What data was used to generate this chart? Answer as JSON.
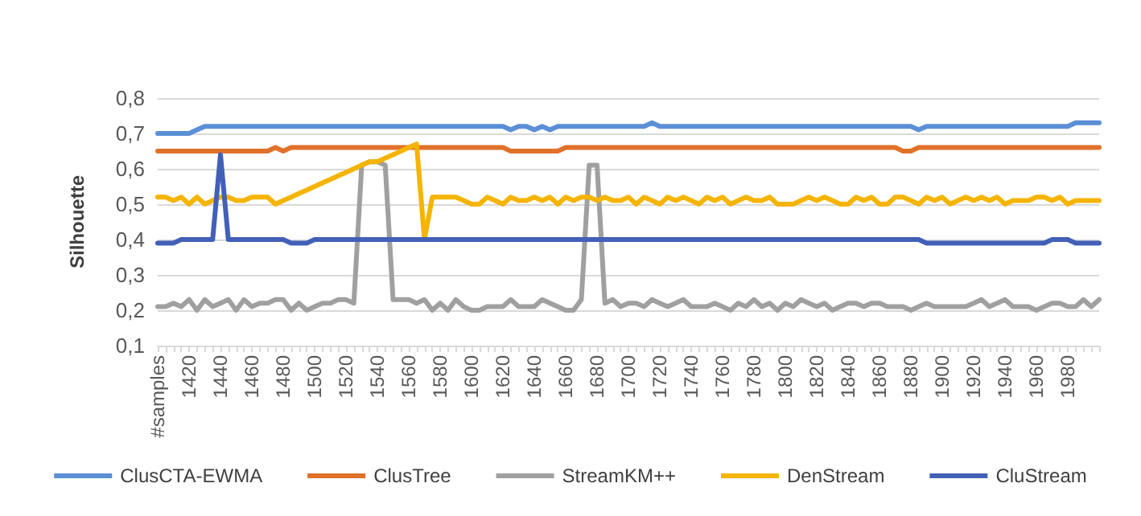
{
  "chart_data": {
    "type": "line",
    "ylabel": "Silhouette",
    "categories": [
      "#samples",
      null,
      null,
      null,
      "1420",
      null,
      null,
      null,
      "1440",
      null,
      null,
      null,
      "1460",
      null,
      null,
      null,
      "1480",
      null,
      null,
      null,
      "1500",
      null,
      null,
      null,
      "1520",
      null,
      null,
      null,
      "1540",
      null,
      null,
      null,
      "1560",
      null,
      null,
      null,
      "1580",
      null,
      null,
      null,
      "1600",
      null,
      null,
      null,
      "1620",
      null,
      null,
      null,
      "1640",
      null,
      null,
      null,
      "1660",
      null,
      null,
      null,
      "1680",
      null,
      null,
      null,
      "1700",
      null,
      null,
      null,
      "1720",
      null,
      null,
      null,
      "1740",
      null,
      null,
      null,
      "1760",
      null,
      null,
      null,
      "1780",
      null,
      null,
      null,
      "1800",
      null,
      null,
      null,
      "1820",
      null,
      null,
      null,
      "1840",
      null,
      null,
      null,
      "1860",
      null,
      null,
      null,
      "1880",
      null,
      null,
      null,
      "1900",
      null,
      null,
      null,
      "1920",
      null,
      null,
      null,
      "1940",
      null,
      null,
      null,
      "1960",
      null,
      null,
      null,
      "1980",
      null,
      null,
      null,
      null
    ],
    "series": [
      {
        "name": "ClusCTA-EWMA",
        "color": "#5b8fd6",
        "values": [
          0.7,
          0.7,
          0.7,
          0.7,
          0.7,
          0.71,
          0.72,
          0.72,
          0.72,
          0.72,
          0.72,
          0.72,
          0.72,
          0.72,
          0.72,
          0.72,
          0.72,
          0.72,
          0.72,
          0.72,
          0.72,
          0.72,
          0.72,
          0.72,
          0.72,
          0.72,
          0.72,
          0.72,
          0.72,
          0.72,
          0.72,
          0.72,
          0.72,
          0.72,
          0.72,
          0.72,
          0.72,
          0.72,
          0.72,
          0.72,
          0.72,
          0.72,
          0.72,
          0.72,
          0.72,
          0.71,
          0.72,
          0.72,
          0.71,
          0.72,
          0.71,
          0.72,
          0.72,
          0.72,
          0.72,
          0.72,
          0.72,
          0.72,
          0.72,
          0.72,
          0.72,
          0.72,
          0.72,
          0.73,
          0.72,
          0.72,
          0.72,
          0.72,
          0.72,
          0.72,
          0.72,
          0.72,
          0.72,
          0.72,
          0.72,
          0.72,
          0.72,
          0.72,
          0.72,
          0.72,
          0.72,
          0.72,
          0.72,
          0.72,
          0.72,
          0.72,
          0.72,
          0.72,
          0.72,
          0.72,
          0.72,
          0.72,
          0.72,
          0.72,
          0.72,
          0.72,
          0.72,
          0.71,
          0.72,
          0.72,
          0.72,
          0.72,
          0.72,
          0.72,
          0.72,
          0.72,
          0.72,
          0.72,
          0.72,
          0.72,
          0.72,
          0.72,
          0.72,
          0.72,
          0.72,
          0.72,
          0.72,
          0.73,
          0.73,
          0.73,
          0.73
        ]
      },
      {
        "name": "ClusTree",
        "color": "#e0712a",
        "values": [
          0.65,
          0.65,
          0.65,
          0.65,
          0.65,
          0.65,
          0.65,
          0.65,
          0.65,
          0.65,
          0.65,
          0.65,
          0.65,
          0.65,
          0.65,
          0.66,
          0.65,
          0.66,
          0.66,
          0.66,
          0.66,
          0.66,
          0.66,
          0.66,
          0.66,
          0.66,
          0.66,
          0.66,
          0.66,
          0.66,
          0.66,
          0.66,
          0.66,
          0.66,
          0.66,
          0.66,
          0.66,
          0.66,
          0.66,
          0.66,
          0.66,
          0.66,
          0.66,
          0.66,
          0.66,
          0.65,
          0.65,
          0.65,
          0.65,
          0.65,
          0.65,
          0.65,
          0.66,
          0.66,
          0.66,
          0.66,
          0.66,
          0.66,
          0.66,
          0.66,
          0.66,
          0.66,
          0.66,
          0.66,
          0.66,
          0.66,
          0.66,
          0.66,
          0.66,
          0.66,
          0.66,
          0.66,
          0.66,
          0.66,
          0.66,
          0.66,
          0.66,
          0.66,
          0.66,
          0.66,
          0.66,
          0.66,
          0.66,
          0.66,
          0.66,
          0.66,
          0.66,
          0.66,
          0.66,
          0.66,
          0.66,
          0.66,
          0.66,
          0.66,
          0.66,
          0.65,
          0.65,
          0.66,
          0.66,
          0.66,
          0.66,
          0.66,
          0.66,
          0.66,
          0.66,
          0.66,
          0.66,
          0.66,
          0.66,
          0.66,
          0.66,
          0.66,
          0.66,
          0.66,
          0.66,
          0.66,
          0.66,
          0.66,
          0.66,
          0.66,
          0.66
        ]
      },
      {
        "name": "StreamKM++",
        "color": "#a0a0a0",
        "values": [
          0.21,
          0.21,
          0.22,
          0.21,
          0.23,
          0.2,
          0.23,
          0.21,
          0.22,
          0.23,
          0.2,
          0.23,
          0.21,
          0.22,
          0.22,
          0.23,
          0.23,
          0.2,
          0.22,
          0.2,
          0.21,
          0.22,
          0.22,
          0.23,
          0.23,
          0.22,
          0.61,
          0.62,
          0.62,
          0.61,
          0.23,
          0.23,
          0.23,
          0.22,
          0.23,
          0.2,
          0.22,
          0.2,
          0.23,
          0.21,
          0.2,
          0.2,
          0.21,
          0.21,
          0.21,
          0.23,
          0.21,
          0.21,
          0.21,
          0.23,
          0.22,
          0.21,
          0.2,
          0.2,
          0.23,
          0.61,
          0.61,
          0.22,
          0.23,
          0.21,
          0.22,
          0.22,
          0.21,
          0.23,
          0.22,
          0.21,
          0.22,
          0.23,
          0.21,
          0.21,
          0.21,
          0.22,
          0.21,
          0.2,
          0.22,
          0.21,
          0.23,
          0.21,
          0.22,
          0.2,
          0.22,
          0.21,
          0.23,
          0.22,
          0.21,
          0.22,
          0.2,
          0.21,
          0.22,
          0.22,
          0.21,
          0.22,
          0.22,
          0.21,
          0.21,
          0.21,
          0.2,
          0.21,
          0.22,
          0.21,
          0.21,
          0.21,
          0.21,
          0.21,
          0.22,
          0.23,
          0.21,
          0.22,
          0.23,
          0.21,
          0.21,
          0.21,
          0.2,
          0.21,
          0.22,
          0.22,
          0.21,
          0.21,
          0.23,
          0.21,
          0.23
        ]
      },
      {
        "name": "DenStream",
        "color": "#f5b400",
        "values": [
          0.52,
          0.52,
          0.51,
          0.52,
          0.5,
          0.52,
          0.5,
          0.51,
          0.52,
          0.52,
          0.51,
          0.51,
          0.52,
          0.52,
          0.52,
          0.5,
          0.51,
          0.52,
          0.53,
          0.54,
          0.55,
          0.56,
          0.57,
          0.58,
          0.59,
          0.6,
          0.61,
          0.62,
          0.62,
          0.63,
          0.64,
          0.65,
          0.66,
          0.67,
          0.4,
          0.52,
          0.52,
          0.52,
          0.52,
          0.51,
          0.5,
          0.5,
          0.52,
          0.51,
          0.5,
          0.52,
          0.51,
          0.51,
          0.52,
          0.51,
          0.52,
          0.5,
          0.52,
          0.51,
          0.52,
          0.52,
          0.51,
          0.52,
          0.51,
          0.51,
          0.52,
          0.5,
          0.52,
          0.51,
          0.5,
          0.52,
          0.51,
          0.52,
          0.51,
          0.5,
          0.52,
          0.51,
          0.52,
          0.5,
          0.51,
          0.52,
          0.51,
          0.51,
          0.52,
          0.5,
          0.5,
          0.5,
          0.51,
          0.52,
          0.51,
          0.52,
          0.51,
          0.5,
          0.5,
          0.52,
          0.51,
          0.52,
          0.5,
          0.5,
          0.52,
          0.52,
          0.51,
          0.5,
          0.52,
          0.51,
          0.52,
          0.5,
          0.51,
          0.52,
          0.51,
          0.52,
          0.51,
          0.52,
          0.5,
          0.51,
          0.51,
          0.51,
          0.52,
          0.52,
          0.51,
          0.52,
          0.5,
          0.51,
          0.51,
          0.51,
          0.51
        ]
      },
      {
        "name": "CluStream",
        "color": "#4260b8",
        "values": [
          0.39,
          0.39,
          0.39,
          0.4,
          0.4,
          0.4,
          0.4,
          0.4,
          0.64,
          0.4,
          0.4,
          0.4,
          0.4,
          0.4,
          0.4,
          0.4,
          0.4,
          0.39,
          0.39,
          0.39,
          0.4,
          0.4,
          0.4,
          0.4,
          0.4,
          0.4,
          0.4,
          0.4,
          0.4,
          0.4,
          0.4,
          0.4,
          0.4,
          0.4,
          0.4,
          0.4,
          0.4,
          0.4,
          0.4,
          0.4,
          0.4,
          0.4,
          0.4,
          0.4,
          0.4,
          0.4,
          0.4,
          0.4,
          0.4,
          0.4,
          0.4,
          0.4,
          0.4,
          0.4,
          0.4,
          0.4,
          0.4,
          0.4,
          0.4,
          0.4,
          0.4,
          0.4,
          0.4,
          0.4,
          0.4,
          0.4,
          0.4,
          0.4,
          0.4,
          0.4,
          0.4,
          0.4,
          0.4,
          0.4,
          0.4,
          0.4,
          0.4,
          0.4,
          0.4,
          0.4,
          0.4,
          0.4,
          0.4,
          0.4,
          0.4,
          0.4,
          0.4,
          0.4,
          0.4,
          0.4,
          0.4,
          0.4,
          0.4,
          0.4,
          0.4,
          0.4,
          0.4,
          0.4,
          0.39,
          0.39,
          0.39,
          0.39,
          0.39,
          0.39,
          0.39,
          0.39,
          0.39,
          0.39,
          0.39,
          0.39,
          0.39,
          0.39,
          0.39,
          0.39,
          0.4,
          0.4,
          0.4,
          0.39,
          0.39,
          0.39,
          0.39
        ]
      }
    ],
    "ylim": [
      0.1,
      0.8
    ],
    "yticks": [
      {
        "value": 0.1,
        "label": "0,1"
      },
      {
        "value": 0.2,
        "label": "0,2"
      },
      {
        "value": 0.3,
        "label": "0,3"
      },
      {
        "value": 0.4,
        "label": "0,4"
      },
      {
        "value": 0.5,
        "label": "0,5"
      },
      {
        "value": 0.6,
        "label": "0,6"
      },
      {
        "value": 0.7,
        "label": "0,7"
      },
      {
        "value": 0.8,
        "label": "0,8"
      }
    ],
    "grid": "y",
    "legend": "bottom",
    "marker": "none",
    "line_style": "solid"
  }
}
